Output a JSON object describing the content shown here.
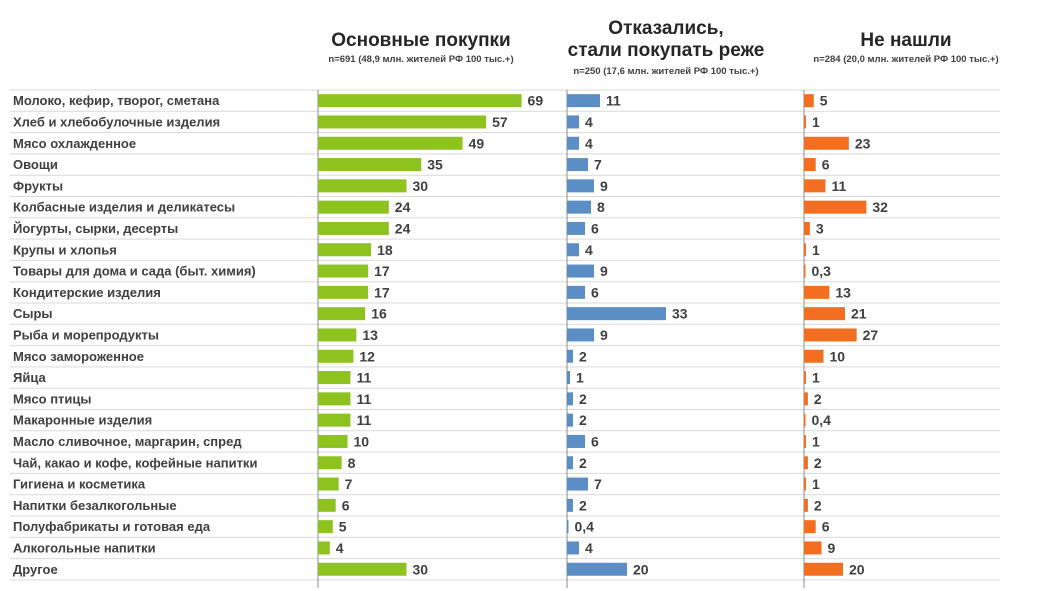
{
  "chart_data": {
    "type": "bar",
    "orientation": "horizontal",
    "grid": false,
    "categories": [
      "Молоко, кефир, творог, сметана",
      "Хлеб и хлебобулочные изделия",
      "Мясо  охлажденное",
      "Овощи",
      "Фрукты",
      "Колбасные изделия и  деликатесы",
      "Йогурты, сырки, десерты",
      "Крупы и хлопья",
      "Товары для дома и сада (быт. химия)",
      "Кондитерские изделия",
      "Сыры",
      "Рыба и морепродукты",
      "Мясо замороженное",
      "Яйца",
      "Мясо птицы",
      "Макаронные изделия",
      "Масло сливочное, маргарин, спред",
      "Чай, какао и кофе, кофейные напитки",
      "Гигиена и косметика",
      "Напитки безалкогольные",
      "Полуфабрикаты и готовая еда",
      "Алкогольные напитки",
      "Другое"
    ],
    "series": [
      {
        "name": "Основные покупки",
        "subtitle": "n=691 (48,9 млн. жителей РФ 100 тыс.+)",
        "color": "#8dc21f",
        "values": [
          69,
          57,
          49,
          35,
          30,
          24,
          24,
          18,
          17,
          17,
          16,
          13,
          12,
          11,
          11,
          11,
          10,
          8,
          7,
          6,
          5,
          4,
          30
        ],
        "labels": [
          "69",
          "57",
          "49",
          "35",
          "30",
          "24",
          "24",
          "18",
          "17",
          "17",
          "16",
          "13",
          "12",
          "11",
          "11",
          "11",
          "10",
          "8",
          "7",
          "6",
          "5",
          "4",
          "30"
        ]
      },
      {
        "name": "Отказались,\nстали покупать реже",
        "subtitle": "n=250 (17,6 млн. жителей РФ 100 тыс.+)",
        "color": "#5b8ec4",
        "values": [
          11,
          4,
          4,
          7,
          9,
          8,
          6,
          4,
          9,
          6,
          33,
          9,
          2,
          1,
          2,
          2,
          6,
          2,
          7,
          2,
          0.4,
          4,
          20
        ],
        "labels": [
          "11",
          "4",
          "4",
          "7",
          "9",
          "8",
          "6",
          "4",
          "9",
          "6",
          "33",
          "9",
          "2",
          "1",
          "2",
          "2",
          "6",
          "2",
          "7",
          "2",
          "0,4",
          "4",
          "20"
        ]
      },
      {
        "name": "Не нашли",
        "subtitle": "n=284 (20,0 млн. жителей РФ 100 тыс.+)",
        "color": "#f26f21",
        "values": [
          5,
          1,
          23,
          6,
          11,
          32,
          3,
          1,
          0.3,
          13,
          21,
          27,
          10,
          1,
          2,
          0.4,
          1,
          2,
          1,
          2,
          6,
          9,
          20
        ],
        "labels": [
          "5",
          "1",
          "23",
          "6",
          "11",
          "32",
          "3",
          "1",
          "0,3",
          "13",
          "21",
          "27",
          "10",
          "1",
          "2",
          "0,4",
          "1",
          "2",
          "1",
          "2",
          "6",
          "9",
          "20"
        ]
      }
    ]
  }
}
